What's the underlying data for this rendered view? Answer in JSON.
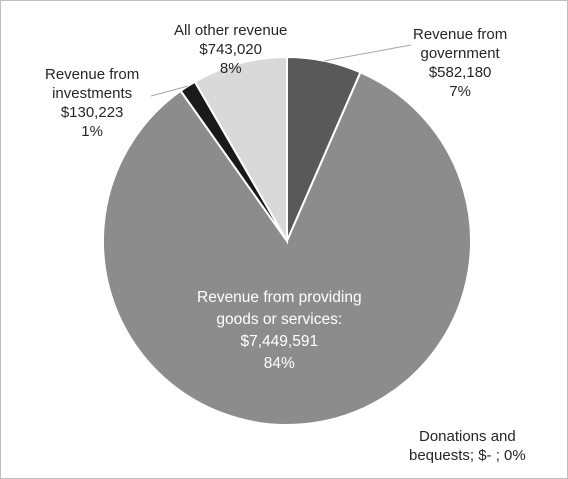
{
  "chart_data": {
    "type": "pie",
    "title": "",
    "slices": [
      {
        "name": "Revenue from government",
        "value": 582180,
        "value_label": "$582,180",
        "percent_label": "7%",
        "color": "#595959"
      },
      {
        "name": "Revenue from providing goods or services:",
        "value": 7449591,
        "value_label": "$7,449,591",
        "percent_label": "84%",
        "color": "#8c8c8c"
      },
      {
        "name": "Donations and bequests",
        "value": 0,
        "value_label": "$-",
        "percent_label": "0%",
        "color": "#7f7f7f"
      },
      {
        "name": "Revenue from investments",
        "value": 130223,
        "value_label": "$130,223",
        "percent_label": "1%",
        "color": "#1a1a1a"
      },
      {
        "name": "All other revenue",
        "value": 743020,
        "value_label": "$743,020",
        "percent_label": "8%",
        "color": "#d9d9d9"
      }
    ],
    "labels": {
      "government": {
        "line1": "Revenue from",
        "line2": "government",
        "line3": "$582,180",
        "line4": "7%"
      },
      "other": {
        "line1": "All other revenue",
        "line2": "$743,020",
        "line3": "8%"
      },
      "investments": {
        "line1": "Revenue from",
        "line2": "investments",
        "line3": "$130,223",
        "line4": "1%"
      },
      "main": {
        "line1": "Revenue from providing",
        "line2": "goods or services:",
        "line3": "$7,449,591",
        "line4": "84%"
      },
      "donations": {
        "line1": "Donations and",
        "line2": "bequests;  $-   ; 0%"
      }
    },
    "legend": "none"
  }
}
